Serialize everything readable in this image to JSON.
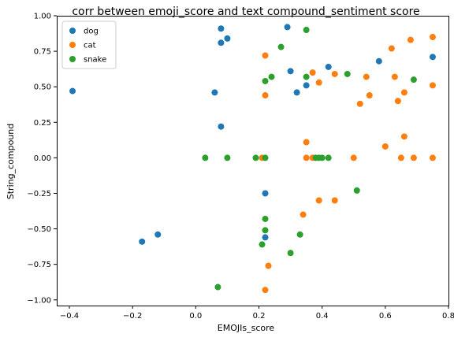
{
  "chart_data": {
    "type": "scatter",
    "title": "corr between emoji_score and text compound_sentiment score",
    "xlabel": "EMOJIs_score",
    "ylabel": "String_compound",
    "xlim": [
      -0.44,
      0.8
    ],
    "ylim": [
      -1.04,
      1.0
    ],
    "xticks": [
      -0.4,
      -0.2,
      0.0,
      0.2,
      0.4,
      0.6,
      0.8
    ],
    "xtick_labels": [
      "−0.4",
      "−0.2",
      "0.0",
      "0.2",
      "0.4",
      "0.6",
      "0.8"
    ],
    "yticks": [
      -1.0,
      -0.75,
      -0.5,
      -0.25,
      0.0,
      0.25,
      0.5,
      0.75,
      1.0
    ],
    "ytick_labels": [
      "−1.00",
      "−0.75",
      "−0.50",
      "−0.25",
      "0.00",
      "0.25",
      "0.50",
      "0.75",
      "1.00"
    ],
    "grid": false,
    "legend_position": "top-left",
    "series": [
      {
        "name": "dog",
        "color": "#1f77b4",
        "points": [
          [
            -0.39,
            0.47
          ],
          [
            -0.17,
            -0.59
          ],
          [
            -0.12,
            -0.54
          ],
          [
            0.06,
            0.46
          ],
          [
            0.08,
            0.91
          ],
          [
            0.08,
            0.81
          ],
          [
            0.08,
            0.22
          ],
          [
            0.1,
            0.84
          ],
          [
            0.22,
            -0.25
          ],
          [
            0.22,
            -0.56
          ],
          [
            0.29,
            0.92
          ],
          [
            0.3,
            0.61
          ],
          [
            0.32,
            0.46
          ],
          [
            0.35,
            0.51
          ],
          [
            0.42,
            0.64
          ],
          [
            0.58,
            0.68
          ],
          [
            0.75,
            0.71
          ]
        ]
      },
      {
        "name": "cat",
        "color": "#ff7f0e",
        "points": [
          [
            0.21,
            0.0
          ],
          [
            0.22,
            0.72
          ],
          [
            0.22,
            0.44
          ],
          [
            0.22,
            -0.93
          ],
          [
            0.23,
            -0.76
          ],
          [
            0.34,
            -0.4
          ],
          [
            0.35,
            0.11
          ],
          [
            0.35,
            0.0
          ],
          [
            0.37,
            0.6
          ],
          [
            0.37,
            0.0
          ],
          [
            0.39,
            0.53
          ],
          [
            0.39,
            -0.3
          ],
          [
            0.44,
            0.59
          ],
          [
            0.44,
            -0.3
          ],
          [
            0.5,
            0.0
          ],
          [
            0.52,
            0.38
          ],
          [
            0.54,
            0.57
          ],
          [
            0.55,
            0.44
          ],
          [
            0.6,
            0.08
          ],
          [
            0.62,
            0.77
          ],
          [
            0.63,
            0.57
          ],
          [
            0.64,
            0.4
          ],
          [
            0.65,
            0.0
          ],
          [
            0.66,
            0.15
          ],
          [
            0.66,
            0.46
          ],
          [
            0.68,
            0.83
          ],
          [
            0.69,
            0.0
          ],
          [
            0.75,
            0.85
          ],
          [
            0.75,
            0.51
          ],
          [
            0.75,
            0.0
          ]
        ]
      },
      {
        "name": "snake",
        "color": "#2ca02c",
        "points": [
          [
            0.03,
            0.0
          ],
          [
            0.07,
            -0.91
          ],
          [
            0.1,
            0.0
          ],
          [
            0.19,
            0.0
          ],
          [
            0.21,
            -0.61
          ],
          [
            0.22,
            0.54
          ],
          [
            0.22,
            0.0
          ],
          [
            0.22,
            -0.43
          ],
          [
            0.22,
            -0.51
          ],
          [
            0.24,
            0.57
          ],
          [
            0.27,
            0.78
          ],
          [
            0.3,
            -0.67
          ],
          [
            0.33,
            -0.54
          ],
          [
            0.35,
            0.9
          ],
          [
            0.35,
            0.57
          ],
          [
            0.38,
            0.0
          ],
          [
            0.39,
            0.0
          ],
          [
            0.4,
            0.0
          ],
          [
            0.42,
            0.0
          ],
          [
            0.48,
            0.59
          ],
          [
            0.51,
            -0.23
          ],
          [
            0.69,
            0.55
          ]
        ]
      }
    ]
  }
}
